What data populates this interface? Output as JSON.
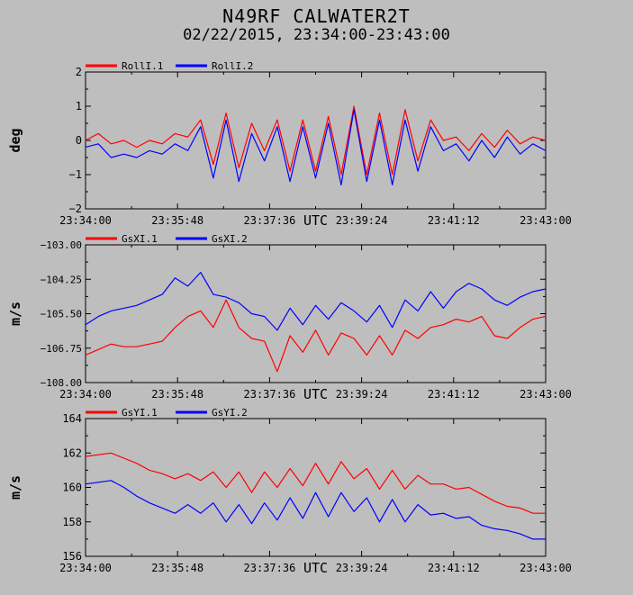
{
  "header": {
    "title": "N49RF CALWATER2T",
    "subtitle": "02/22/2015, 23:34:00-23:43:00"
  },
  "chart_data": [
    {
      "type": "line",
      "ylabel": "deg",
      "xlabel": "UTC",
      "ylim": [
        -2,
        2
      ],
      "yticks": [
        "2",
        "1",
        "0",
        "−1",
        "−2"
      ],
      "xticks": [
        "23:34:00",
        "23:35:48",
        "23:37:36",
        "23:39:24",
        "23:41:12",
        "23:43:00"
      ],
      "legend_placement": "top-left",
      "x": [
        0,
        0.25,
        0.5,
        0.75,
        1,
        1.25,
        1.5,
        1.75,
        2,
        2.25,
        2.5,
        2.75,
        3,
        3.25,
        3.5,
        3.75,
        4,
        4.25,
        4.5,
        4.75,
        5,
        5.25,
        5.5,
        5.75,
        6,
        6.25,
        6.5,
        6.75,
        7,
        7.25,
        7.5,
        7.75,
        8,
        8.25,
        8.5,
        8.75,
        9
      ],
      "series": [
        {
          "name": "RollI.1",
          "color": "#ff0000",
          "values": [
            0.0,
            0.2,
            -0.1,
            0.0,
            -0.2,
            0.0,
            -0.1,
            0.2,
            0.1,
            0.6,
            -0.7,
            0.8,
            -0.8,
            0.5,
            -0.3,
            0.6,
            -0.9,
            0.6,
            -0.9,
            0.7,
            -1.0,
            1.0,
            -1.0,
            0.8,
            -1.0,
            0.9,
            -0.6,
            0.6,
            0.0,
            0.1,
            -0.3,
            0.2,
            -0.2,
            0.3,
            -0.1,
            0.1,
            0.0
          ]
        },
        {
          "name": "RollI.2",
          "color": "#0000ff",
          "values": [
            -0.2,
            -0.1,
            -0.5,
            -0.4,
            -0.5,
            -0.3,
            -0.4,
            -0.1,
            -0.3,
            0.4,
            -1.1,
            0.6,
            -1.2,
            0.2,
            -0.6,
            0.4,
            -1.2,
            0.4,
            -1.1,
            0.5,
            -1.3,
            0.9,
            -1.2,
            0.6,
            -1.3,
            0.6,
            -0.9,
            0.4,
            -0.3,
            -0.1,
            -0.6,
            0.0,
            -0.5,
            0.1,
            -0.4,
            -0.1,
            -0.3
          ]
        }
      ]
    },
    {
      "type": "line",
      "ylabel": "m/s",
      "xlabel": "UTC",
      "ylim": [
        -108,
        -103
      ],
      "yticks": [
        "−103.00",
        "−104.25",
        "−105.50",
        "−106.75",
        "−108.00"
      ],
      "xticks": [
        "23:34:00",
        "23:35:48",
        "23:37:36",
        "23:39:24",
        "23:41:12",
        "23:43:00"
      ],
      "legend_placement": "top-left",
      "x": [
        0,
        0.25,
        0.5,
        0.75,
        1,
        1.25,
        1.5,
        1.75,
        2,
        2.25,
        2.5,
        2.75,
        3,
        3.25,
        3.5,
        3.75,
        4,
        4.25,
        4.5,
        4.75,
        5,
        5.25,
        5.5,
        5.75,
        6,
        6.25,
        6.5,
        6.75,
        7,
        7.25,
        7.5,
        7.75,
        8,
        8.25,
        8.5,
        8.75,
        9
      ],
      "series": [
        {
          "name": "GsXI.1",
          "color": "#ff0000",
          "values": [
            -107.0,
            -106.8,
            -106.6,
            -106.7,
            -106.7,
            -106.6,
            -106.5,
            -106.0,
            -105.6,
            -105.4,
            -106.0,
            -105.0,
            -106.0,
            -106.4,
            -106.5,
            -107.6,
            -106.3,
            -106.9,
            -106.1,
            -107.0,
            -106.2,
            -106.4,
            -107.0,
            -106.3,
            -107.0,
            -106.1,
            -106.4,
            -106.0,
            -105.9,
            -105.7,
            -105.8,
            -105.6,
            -106.3,
            -106.4,
            -106.0,
            -105.7,
            -105.6
          ]
        },
        {
          "name": "GsXI.2",
          "color": "#0000ff",
          "values": [
            -105.9,
            -105.6,
            -105.4,
            -105.3,
            -105.2,
            -105.0,
            -104.8,
            -104.2,
            -104.5,
            -104.0,
            -104.8,
            -104.9,
            -105.1,
            -105.5,
            -105.6,
            -106.1,
            -105.3,
            -105.9,
            -105.2,
            -105.7,
            -105.1,
            -105.4,
            -105.8,
            -105.2,
            -106.0,
            -105.0,
            -105.4,
            -104.7,
            -105.3,
            -104.7,
            -104.4,
            -104.6,
            -105.0,
            -105.2,
            -104.9,
            -104.7,
            -104.6
          ]
        }
      ]
    },
    {
      "type": "line",
      "ylabel": "m/s",
      "xlabel": "UTC",
      "ylim": [
        156,
        164
      ],
      "yticks": [
        "164",
        "162",
        "160",
        "158",
        "156"
      ],
      "xticks": [
        "23:34:00",
        "23:35:48",
        "23:37:36",
        "23:39:24",
        "23:41:12",
        "23:43:00"
      ],
      "legend_placement": "top-left",
      "x": [
        0,
        0.25,
        0.5,
        0.75,
        1,
        1.25,
        1.5,
        1.75,
        2,
        2.25,
        2.5,
        2.75,
        3,
        3.25,
        3.5,
        3.75,
        4,
        4.25,
        4.5,
        4.75,
        5,
        5.25,
        5.5,
        5.75,
        6,
        6.25,
        6.5,
        6.75,
        7,
        7.25,
        7.5,
        7.75,
        8,
        8.25,
        8.5,
        8.75,
        9
      ],
      "series": [
        {
          "name": "GsYI.1",
          "color": "#ff0000",
          "values": [
            161.8,
            161.9,
            162.0,
            161.7,
            161.4,
            161.0,
            160.8,
            160.5,
            160.8,
            160.4,
            160.9,
            160.0,
            160.9,
            159.7,
            160.9,
            160.0,
            161.1,
            160.1,
            161.4,
            160.2,
            161.5,
            160.5,
            161.1,
            159.9,
            161.0,
            159.9,
            160.7,
            160.2,
            160.2,
            159.9,
            160.0,
            159.6,
            159.2,
            158.9,
            158.8,
            158.5,
            158.5
          ]
        },
        {
          "name": "GsYI.2",
          "color": "#0000ff",
          "values": [
            160.2,
            160.3,
            160.4,
            160.0,
            159.5,
            159.1,
            158.8,
            158.5,
            159.0,
            158.5,
            159.1,
            158.0,
            159.0,
            157.9,
            159.1,
            158.1,
            159.4,
            158.2,
            159.7,
            158.3,
            159.7,
            158.6,
            159.4,
            158.0,
            159.3,
            158.0,
            159.0,
            158.4,
            158.5,
            158.2,
            158.3,
            157.8,
            157.6,
            157.5,
            157.3,
            157.0,
            157.0
          ]
        }
      ]
    }
  ]
}
